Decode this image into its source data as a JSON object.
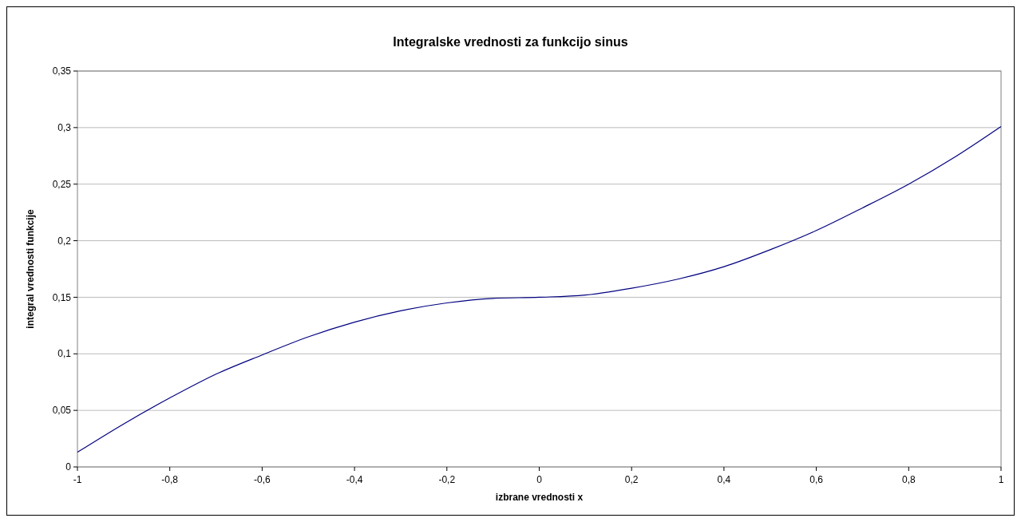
{
  "chart_data": {
    "type": "line",
    "title": "Integralske vrednosti za funkcijo sinus",
    "xlabel": "izbrane vrednosti x",
    "ylabel": "integral vrednosti funkcije",
    "x": [
      -1,
      -0.9,
      -0.8,
      -0.7,
      -0.6,
      -0.5,
      -0.4,
      -0.3,
      -0.2,
      -0.1,
      0,
      0.1,
      0.2,
      0.3,
      0.4,
      0.5,
      0.6,
      0.7,
      0.8,
      0.9,
      1
    ],
    "series": [
      {
        "color": "#000080",
        "values": [
          0.013,
          0.038,
          0.061,
          0.082,
          0.099,
          0.115,
          0.128,
          0.138,
          0.145,
          0.149,
          0.15,
          0.152,
          0.158,
          0.166,
          0.177,
          0.192,
          0.209,
          0.229,
          0.25,
          0.274,
          0.301
        ]
      }
    ],
    "xlim": [
      -1,
      1
    ],
    "xticks": [
      {
        "value": -1,
        "label": "-1"
      },
      {
        "value": -0.8,
        "label": "-0,8"
      },
      {
        "value": -0.6,
        "label": "-0,6"
      },
      {
        "value": -0.4,
        "label": "-0,4"
      },
      {
        "value": -0.2,
        "label": "-0,2"
      },
      0,
      {
        "value": 0.2,
        "label": "0,2"
      },
      {
        "value": 0.4,
        "label": "0,4"
      },
      {
        "value": 0.6,
        "label": "0,6"
      },
      {
        "value": 0.8,
        "label": "0,8"
      },
      1
    ],
    "ylim": [
      0,
      0.35
    ],
    "yticks": [
      0,
      {
        "value": 0.05,
        "label": "0,05"
      },
      {
        "value": 0.1,
        "label": "0,1"
      },
      {
        "value": 0.15,
        "label": "0,15"
      },
      {
        "value": 0.2,
        "label": "0,2"
      },
      {
        "value": 0.25,
        "label": "0,25"
      },
      {
        "value": 0.3,
        "label": "0,3"
      },
      {
        "value": 0.35,
        "label": "0,35"
      }
    ],
    "grid": "y",
    "marker": "none",
    "line_style": "solid"
  }
}
